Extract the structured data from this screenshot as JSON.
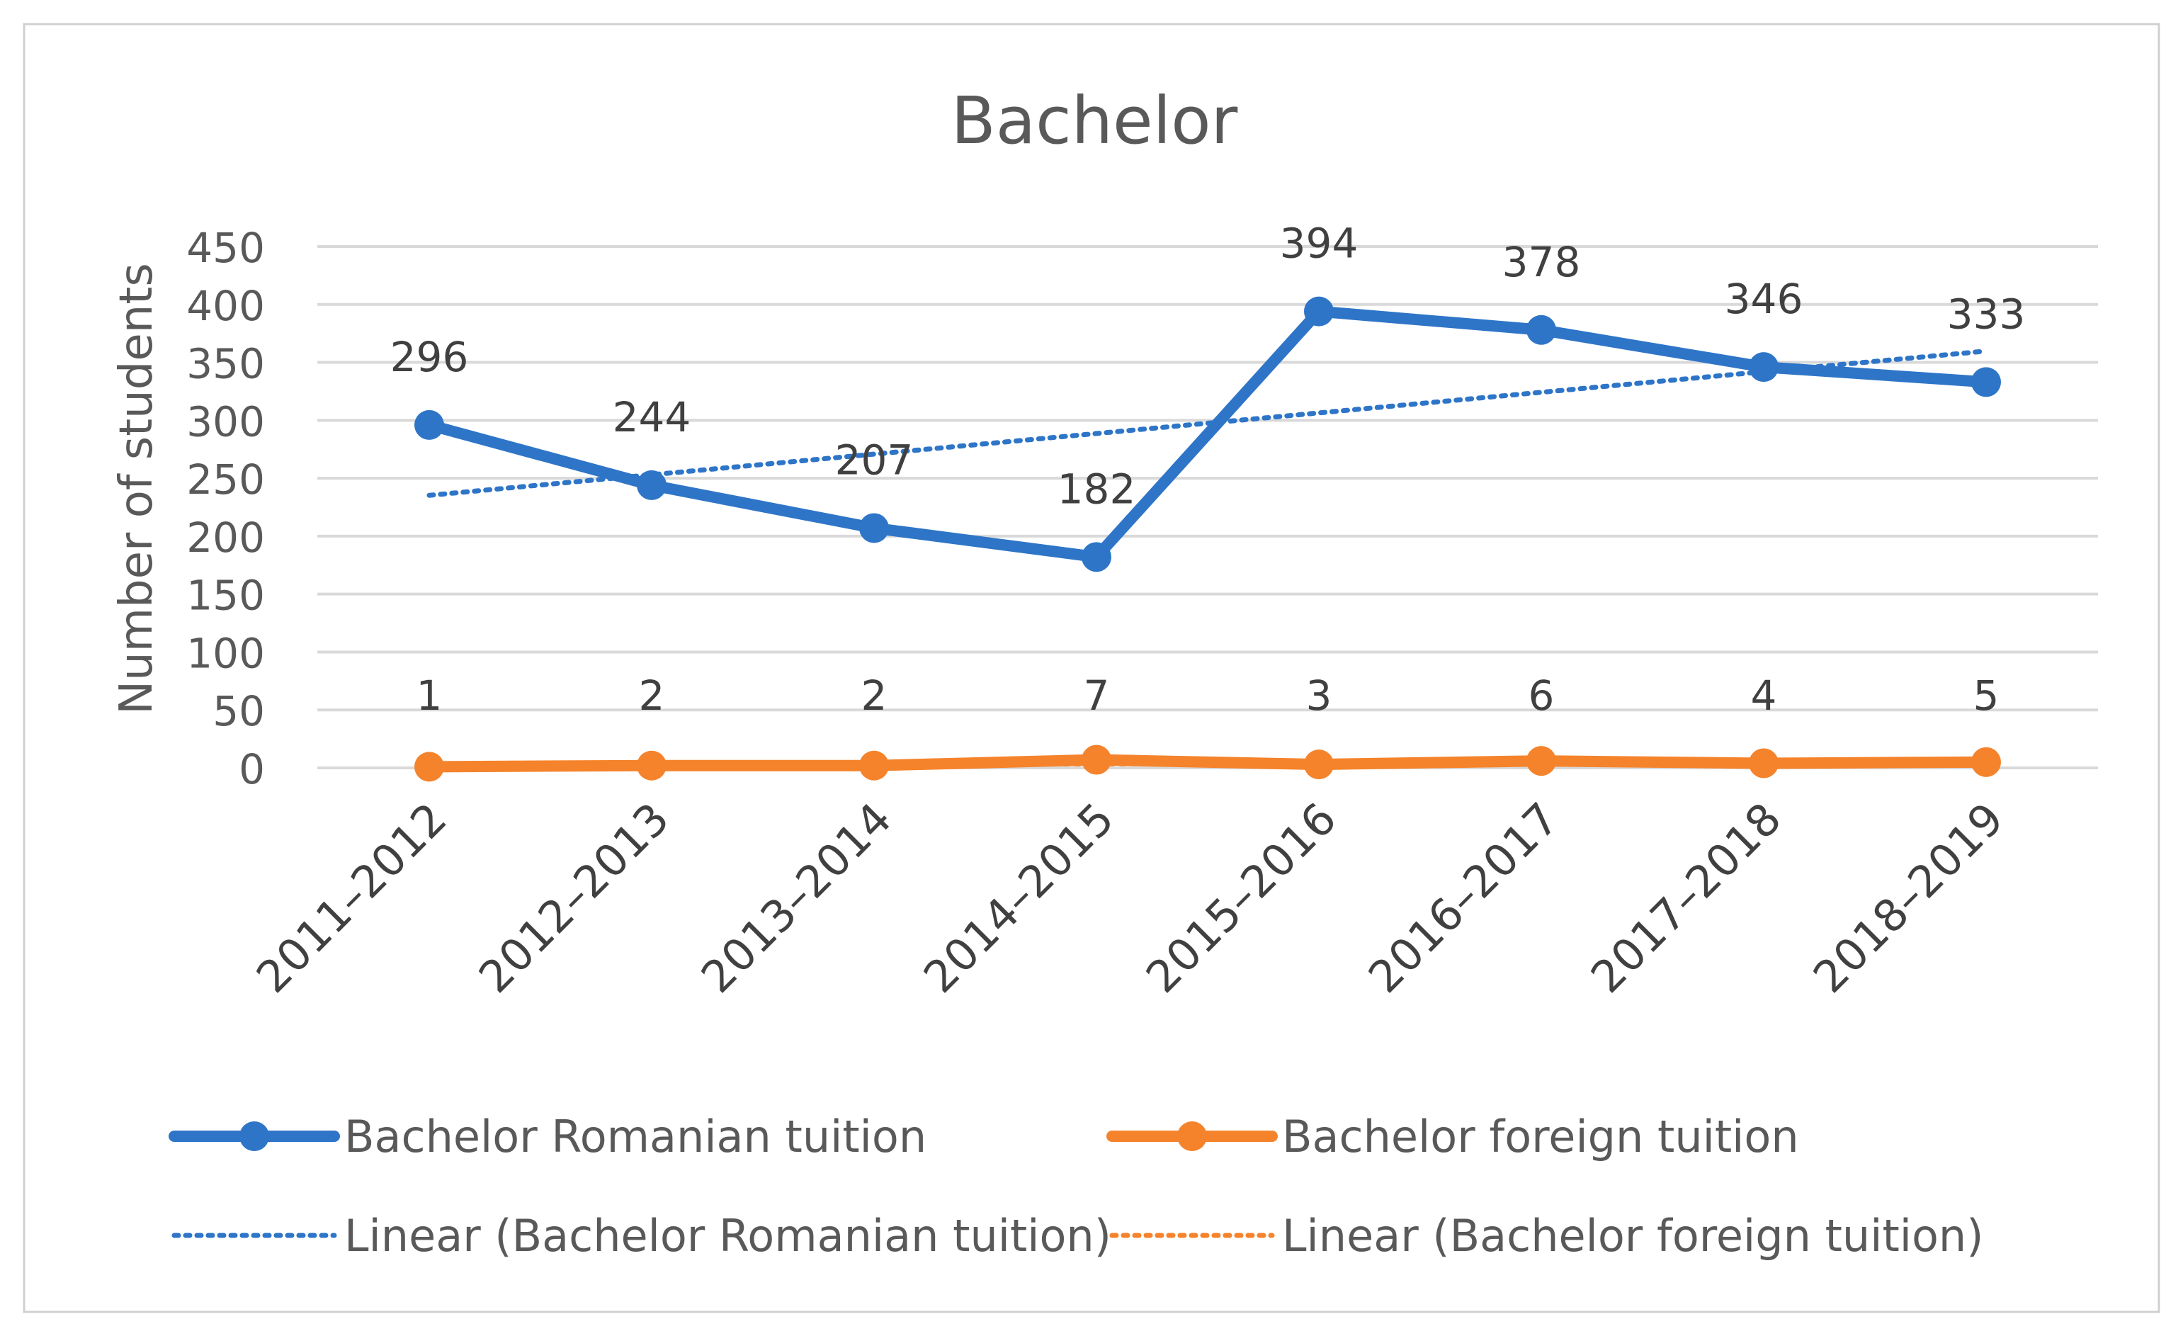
{
  "chart_data": {
    "type": "line",
    "title": "Bachelor",
    "xlabel": "",
    "ylabel": "Number of students",
    "ylim": [
      0,
      450
    ],
    "y_ticks": [
      "0",
      "50",
      "100",
      "150",
      "200",
      "250",
      "300",
      "350",
      "400",
      "450"
    ],
    "categories": [
      "2011–2012",
      "2012–2013",
      "2013–2014",
      "2014–2015",
      "2015–2016",
      "2016–2017",
      "2017–2018",
      "2018–2019"
    ],
    "grid": true,
    "legend_position": "bottom",
    "series": [
      {
        "name": "Bachelor Romanian tuition",
        "color": "#2E75C8",
        "values": [
          296,
          244,
          207,
          182,
          394,
          378,
          346,
          333
        ]
      },
      {
        "name": "Bachelor foreign tuition",
        "color": "#F5832B",
        "values": [
          1,
          2,
          2,
          7,
          3,
          6,
          4,
          5
        ]
      }
    ],
    "trendlines": [
      {
        "name": "Linear (Bachelor Romanian tuition)",
        "color": "#2E75C8",
        "series_index": 0
      },
      {
        "name": "Linear (Bachelor foreign tuition)",
        "color": "#F5832B",
        "series_index": 1
      }
    ]
  }
}
